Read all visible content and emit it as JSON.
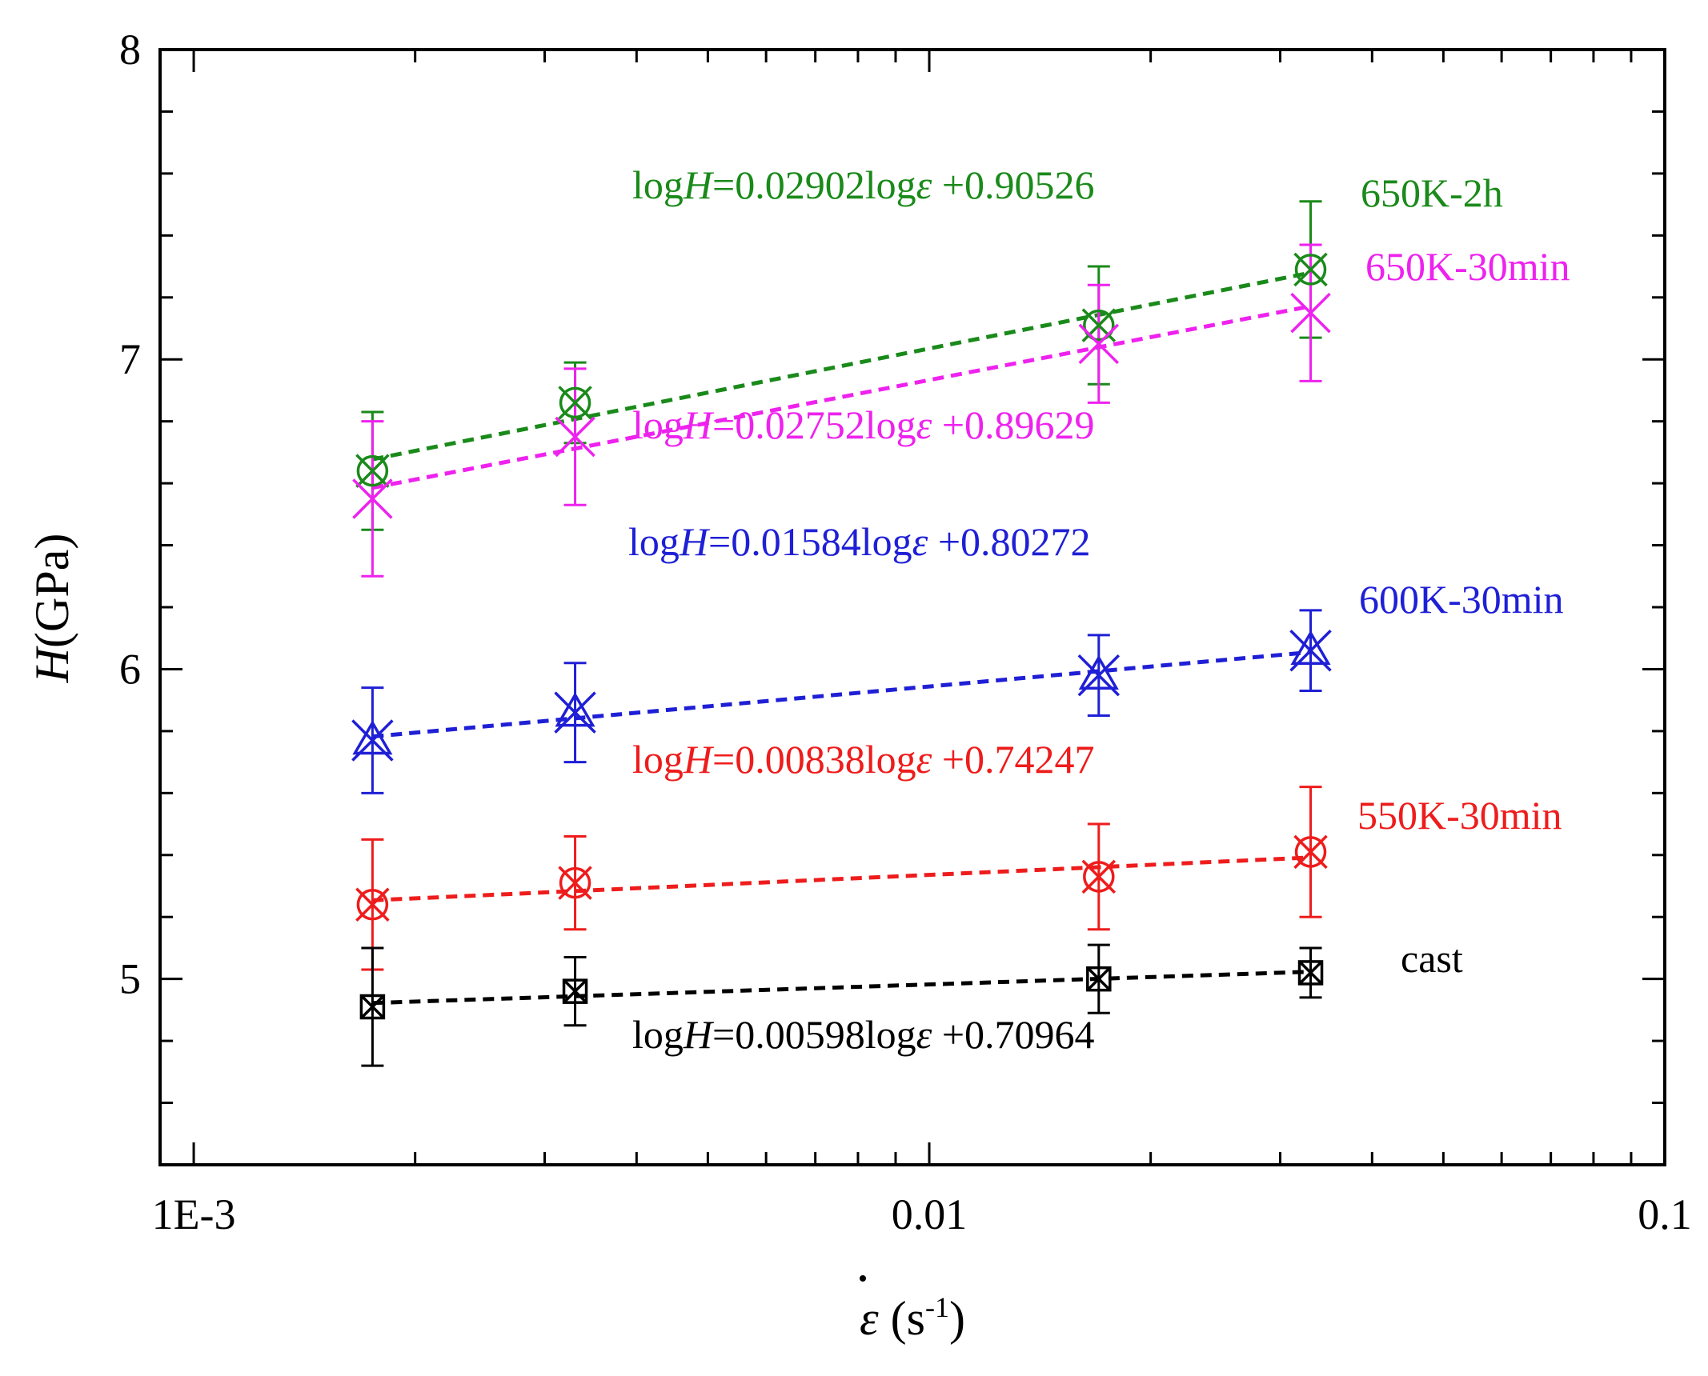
{
  "chart_data": {
    "type": "scatter",
    "x_scale": "log",
    "xlim": [
      0.0009,
      0.1
    ],
    "ylim": [
      4.4,
      8
    ],
    "grid": false,
    "legend": "none",
    "x_ticks": [
      0.001,
      0.01,
      0.1
    ],
    "x_tick_labels": [
      "1E-3",
      "0.01",
      "0.1"
    ],
    "y_ticks": [
      5,
      6,
      7,
      8
    ],
    "y_tick_labels": [
      "5",
      "6",
      "7",
      "8"
    ],
    "xlabel": {
      "symbol": "ε",
      "unit_open": " (s",
      "unit_sup": "-1",
      "unit_close": ")"
    },
    "ylabel": {
      "italic": "H",
      "rest": "(GPa)"
    },
    "x": [
      0.00175,
      0.0033,
      0.017,
      0.033
    ],
    "series": [
      {
        "name": "650K-2h",
        "color": "#1a8a1a",
        "marker": "x-circle",
        "y": [
          6.64,
          6.86,
          7.11,
          7.29
        ],
        "y_err": [
          0.19,
          0.13,
          0.19,
          0.22
        ],
        "equation": {
          "pre": "log",
          "italic": "H",
          "mid": "=0.02902log",
          "sym": "ε",
          "post": " +0.90526"
        }
      },
      {
        "name": "650K-30min",
        "color": "#ee22ee",
        "marker": "x",
        "y": [
          6.55,
          6.75,
          7.05,
          7.15
        ],
        "y_err": [
          0.25,
          0.22,
          0.19,
          0.22
        ],
        "equation": {
          "pre": "log",
          "italic": "H",
          "mid": "=0.02752log",
          "sym": "ε",
          "post": " +0.89629"
        }
      },
      {
        "name": "600K-30min",
        "color": "#1f1fd6",
        "marker": "star",
        "y": [
          5.77,
          5.86,
          5.98,
          6.06
        ],
        "y_err": [
          0.17,
          0.16,
          0.13,
          0.13
        ],
        "equation": {
          "pre": "log",
          "italic": "H",
          "mid": "=0.01584log",
          "sym": "ε",
          "post": " +0.80272"
        }
      },
      {
        "name": "550K-30min",
        "color": "#ee1c1c",
        "marker": "x-circle",
        "y": [
          5.24,
          5.31,
          5.33,
          5.41
        ],
        "y_err": [
          0.21,
          0.15,
          0.17,
          0.21
        ],
        "equation": {
          "pre": "log",
          "italic": "H",
          "mid": "=0.00838log",
          "sym": "ε",
          "post": " +0.74247"
        }
      },
      {
        "name": "cast",
        "color": "#000000",
        "marker": "x-square",
        "y": [
          4.91,
          4.96,
          5.0,
          5.02
        ],
        "y_err": [
          0.19,
          0.11,
          0.11,
          0.08
        ],
        "equation": {
          "pre": "log",
          "italic": "H",
          "mid": "=0.00598log",
          "sym": "ε",
          "post": " +0.70964"
        }
      }
    ]
  }
}
